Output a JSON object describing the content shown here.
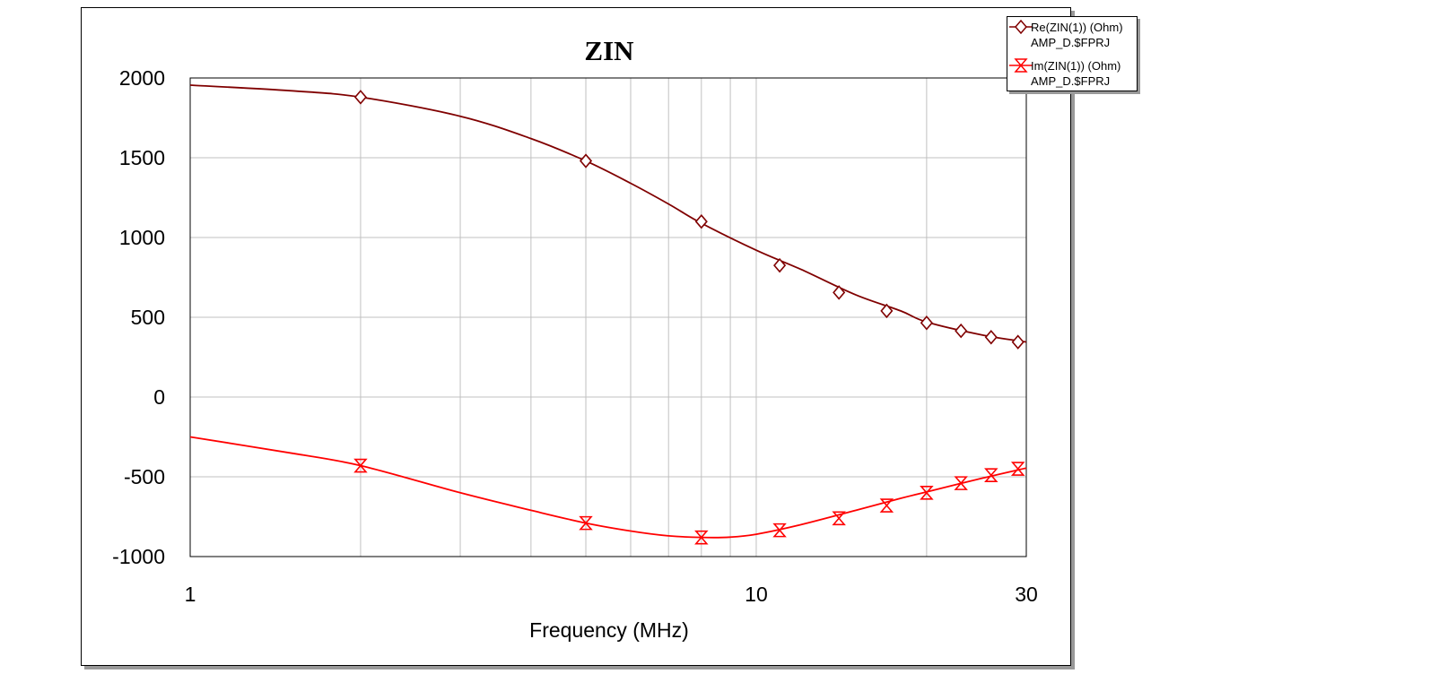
{
  "chart_data": {
    "type": "line",
    "title": "ZIN",
    "xlabel": "Frequency (MHz)",
    "ylabel": "",
    "x_scale": "log",
    "xlim": [
      1,
      30
    ],
    "ylim": [
      -1000,
      2000
    ],
    "x_ticks": [
      1,
      10,
      30
    ],
    "x_tick_labels": [
      "1",
      "10",
      "30"
    ],
    "y_ticks": [
      2000,
      1500,
      1000,
      500,
      0,
      -500,
      -1000
    ],
    "y_tick_labels": [
      "2000",
      "1500",
      "1000",
      "500",
      "0",
      "-500",
      "-1000"
    ],
    "grid": true,
    "legend_position": "top-right",
    "series": [
      {
        "name": "Re(ZIN(1)) (Ohm)",
        "source": "AMP_D.$FPRJ",
        "color": "#800000",
        "marker": "diamond",
        "x": [
          1,
          1.5,
          2,
          3,
          4,
          5,
          6,
          7,
          8,
          10,
          12,
          15,
          18,
          20,
          25,
          30
        ],
        "y": [
          1955,
          1920,
          1880,
          1760,
          1620,
          1480,
          1340,
          1210,
          1090,
          920,
          800,
          640,
          540,
          470,
          390,
          345
        ],
        "marker_x": [
          2,
          5,
          8,
          11,
          14,
          17,
          20,
          23,
          26,
          29
        ],
        "marker_y": [
          1880,
          1480,
          1100,
          825,
          655,
          540,
          465,
          415,
          375,
          345
        ]
      },
      {
        "name": "Im(ZIN(1)) (Ohm)",
        "source": "AMP_D.$FPRJ",
        "color": "#ff0000",
        "marker": "hourglass",
        "x": [
          1,
          1.5,
          2,
          3,
          4,
          5,
          6,
          7,
          8,
          9,
          10,
          12,
          15,
          18,
          20,
          25,
          30
        ],
        "y": [
          -250,
          -350,
          -430,
          -600,
          -710,
          -790,
          -840,
          -870,
          -880,
          -878,
          -860,
          -800,
          -710,
          -635,
          -595,
          -510,
          -445
        ],
        "marker_x": [
          2,
          5,
          8,
          11,
          14,
          17,
          20,
          23,
          26,
          29
        ],
        "marker_y": [
          -430,
          -790,
          -880,
          -835,
          -760,
          -680,
          -600,
          -540,
          -490,
          -450
        ]
      }
    ]
  }
}
